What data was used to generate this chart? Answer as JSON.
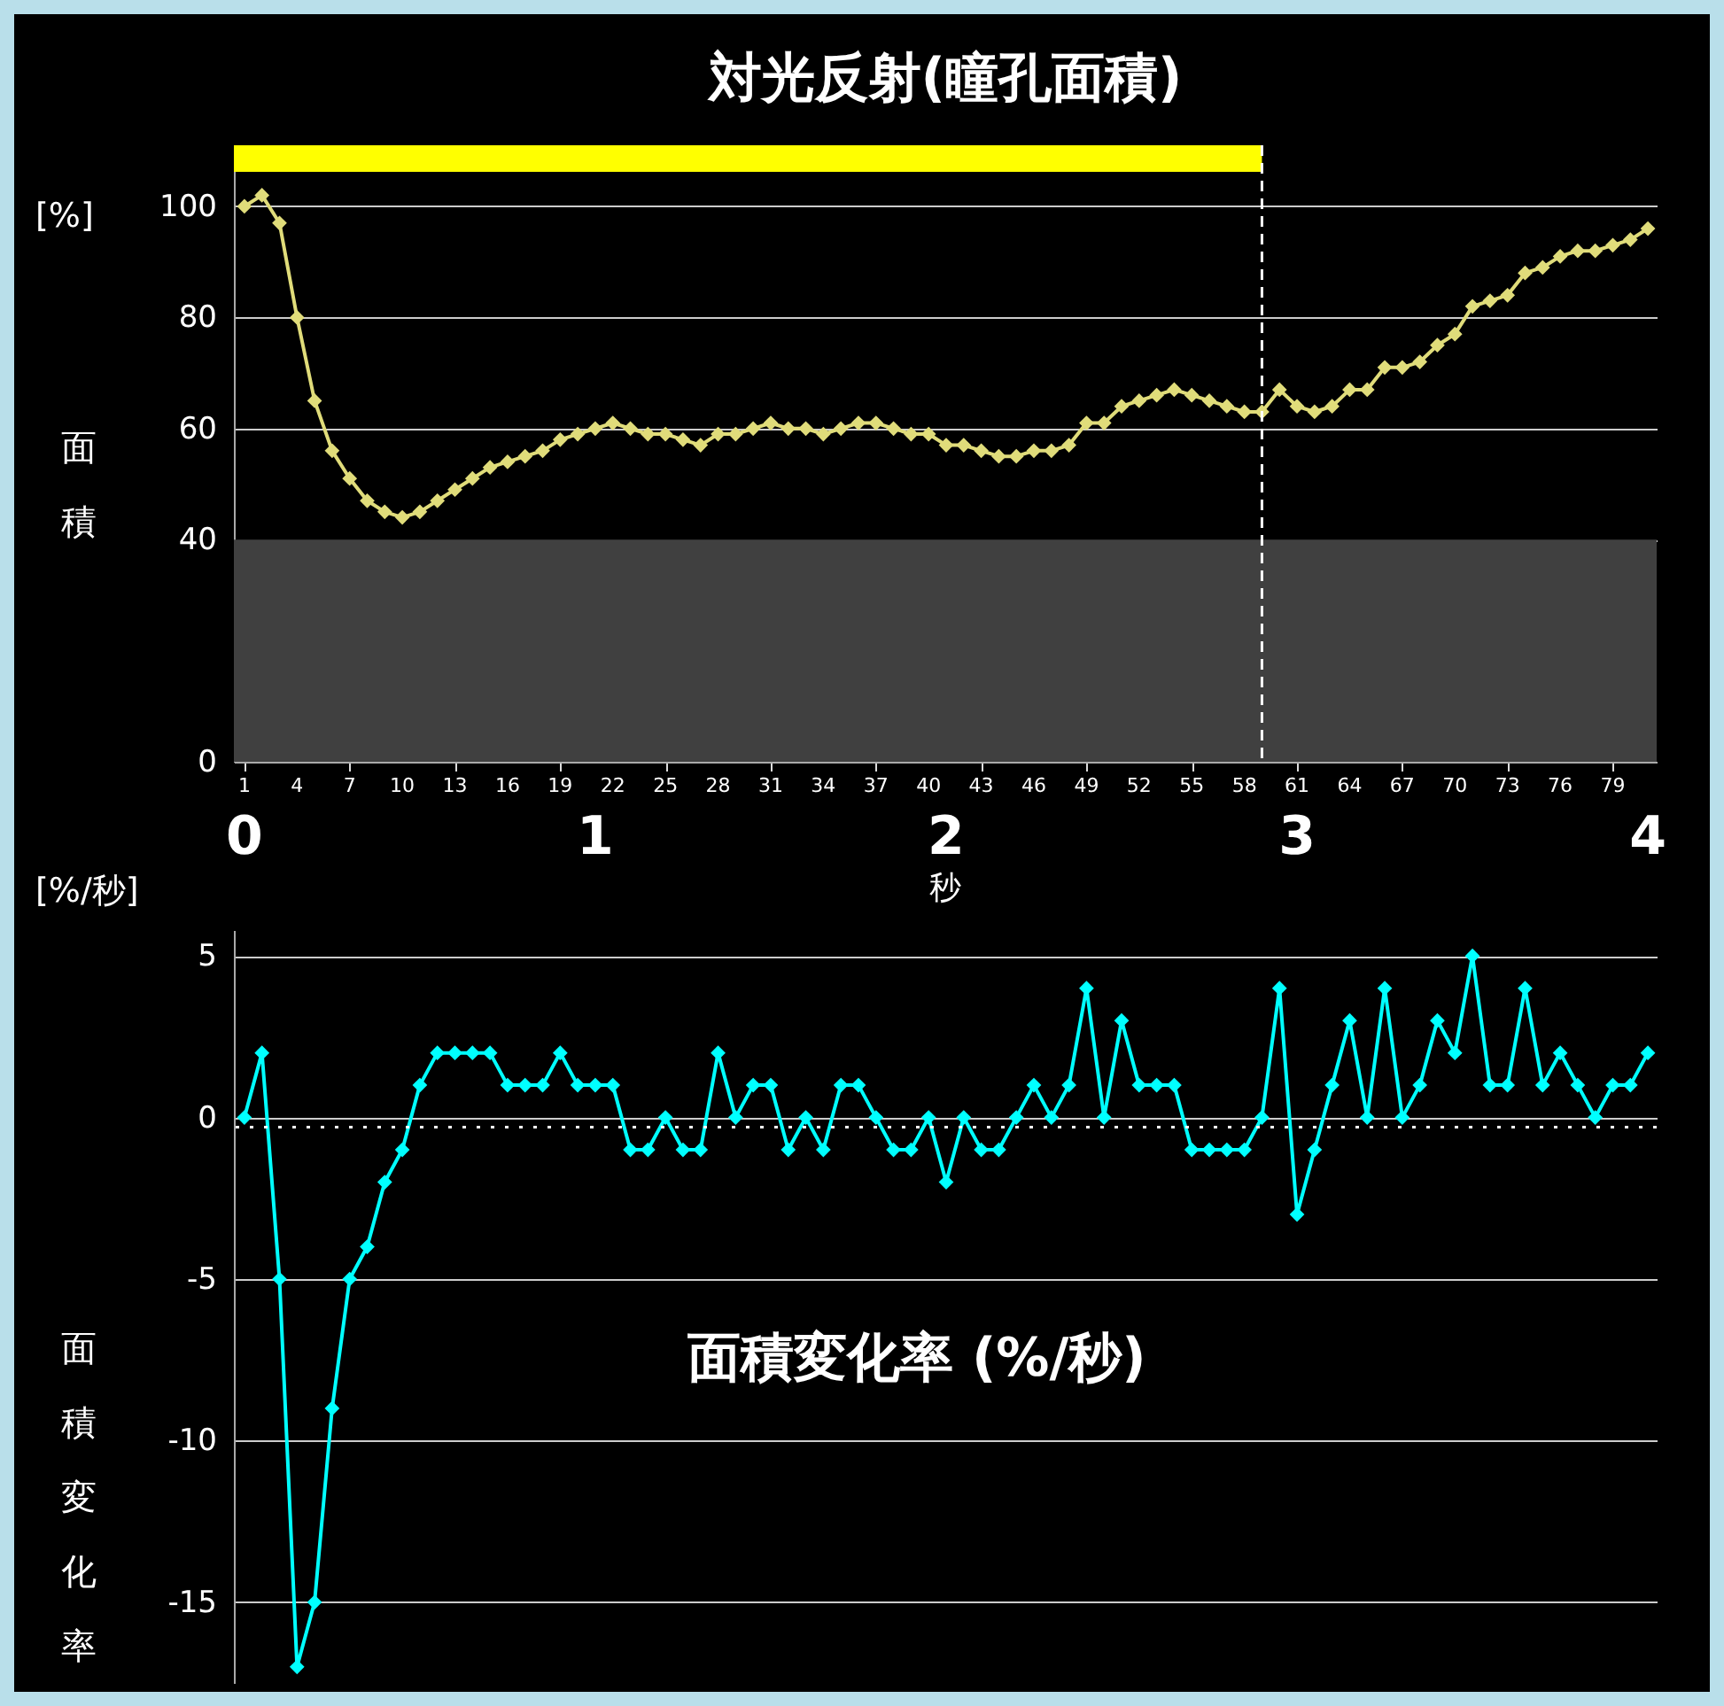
{
  "chart_data": [
    {
      "type": "line",
      "title": "対光反射(瞳孔面積)",
      "ylabel": "面積",
      "x2label": "秒",
      "annotations": [
        "[%]"
      ],
      "x": [
        1,
        2,
        3,
        4,
        5,
        6,
        7,
        8,
        9,
        10,
        11,
        12,
        13,
        14,
        15,
        16,
        17,
        18,
        19,
        20,
        21,
        22,
        23,
        24,
        25,
        26,
        27,
        28,
        29,
        30,
        31,
        32,
        33,
        34,
        35,
        36,
        37,
        38,
        39,
        40,
        41,
        42,
        43,
        44,
        45,
        46,
        47,
        48,
        49,
        50,
        51,
        52,
        53,
        54,
        55,
        56,
        57,
        58,
        59,
        60,
        61,
        62,
        63,
        64,
        65,
        66,
        67,
        68,
        69,
        70,
        71,
        72,
        73,
        74,
        75,
        76,
        77,
        78,
        79,
        80,
        81
      ],
      "xlim": [
        0.4,
        81.5
      ],
      "xticks": [
        1,
        4,
        7,
        10,
        13,
        16,
        19,
        22,
        25,
        28,
        31,
        34,
        37,
        40,
        43,
        46,
        49,
        52,
        55,
        58,
        61,
        64,
        67,
        70,
        73,
        76,
        79
      ],
      "x2lim": [
        -0.03,
        4.025
      ],
      "x2ticks": [
        0,
        1,
        2,
        3,
        4
      ],
      "ylim": [
        0,
        111
      ],
      "yticks": [
        0,
        40,
        60,
        80,
        100
      ],
      "grid": "y",
      "marker": "diamond",
      "series": [
        {
          "color": "#e0dc7a",
          "values": [
            100,
            102,
            97,
            80,
            65,
            56,
            51,
            47,
            45,
            44,
            45,
            47,
            49,
            51,
            53,
            54,
            55,
            56,
            58,
            59,
            60,
            61,
            60,
            59,
            59,
            58,
            57,
            59,
            59,
            60,
            61,
            60,
            60,
            59,
            60,
            61,
            61,
            60,
            59,
            59,
            57,
            57,
            56,
            55,
            55,
            56,
            56,
            57,
            61,
            61,
            64,
            65,
            66,
            67,
            66,
            65,
            64,
            63,
            63,
            67,
            64,
            63,
            64,
            67,
            67,
            71,
            71,
            72,
            75,
            77,
            82,
            83,
            84,
            88,
            89,
            91,
            92,
            92,
            93,
            94,
            96
          ]
        }
      ],
      "bands": [
        {
          "axis": "x",
          "from": 0.4,
          "to": 59,
          "color": "#ffff00"
        },
        {
          "axis": "y",
          "from": 0,
          "to": 40,
          "color": "#404040"
        }
      ],
      "ref_lines": [
        {
          "axis": "x",
          "value": 59,
          "color": "#ffffff",
          "line_style": "dashed"
        }
      ]
    },
    {
      "type": "line",
      "ylabel": "面積変化率",
      "annotations": [
        "[%/秒]",
        "面積変化率 (%/秒)"
      ],
      "x": [
        1,
        2,
        3,
        4,
        5,
        6,
        7,
        8,
        9,
        10,
        11,
        12,
        13,
        14,
        15,
        16,
        17,
        18,
        19,
        20,
        21,
        22,
        23,
        24,
        25,
        26,
        27,
        28,
        29,
        30,
        31,
        32,
        33,
        34,
        35,
        36,
        37,
        38,
        39,
        40,
        41,
        42,
        43,
        44,
        45,
        46,
        47,
        48,
        49,
        50,
        51,
        52,
        53,
        54,
        55,
        56,
        57,
        58,
        59,
        60,
        61,
        62,
        63,
        64,
        65,
        66,
        67,
        68,
        69,
        70,
        71,
        72,
        73,
        74,
        75,
        76,
        77,
        78,
        79,
        80,
        81
      ],
      "xlim": [
        0.4,
        81.5
      ],
      "ylim": [
        -17.5,
        5.8
      ],
      "yticks": [
        -15,
        -10,
        -5,
        0,
        5
      ],
      "tick_labels": "y",
      "grid": "y",
      "marker": "diamond",
      "series": [
        {
          "color": "#00ffff",
          "values": [
            0,
            2,
            -5,
            -17,
            -15,
            -9,
            -5,
            -4,
            -2,
            -1,
            1,
            2,
            2,
            2,
            2,
            1,
            1,
            1,
            2,
            1,
            1,
            1,
            -1,
            -1,
            0,
            -1,
            -1,
            2,
            0,
            1,
            1,
            -1,
            0,
            -1,
            1,
            1,
            0,
            -1,
            -1,
            0,
            -2,
            0,
            -1,
            -1,
            0,
            1,
            0,
            1,
            4,
            0,
            3,
            1,
            1,
            1,
            -1,
            -1,
            -1,
            -1,
            0,
            4,
            -3,
            -1,
            1,
            3,
            0,
            4,
            0,
            1,
            3,
            2,
            5,
            1,
            1,
            4,
            1,
            2,
            1,
            0,
            1,
            1,
            2
          ]
        }
      ],
      "ref_lines": [
        {
          "axis": "y",
          "value": -0.3,
          "color": "#ffffff",
          "line_style": "dotted"
        }
      ]
    }
  ]
}
